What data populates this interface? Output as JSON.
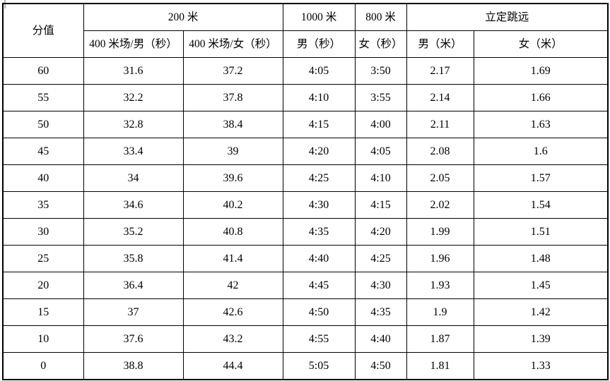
{
  "table": {
    "header": {
      "score": "分值",
      "group_200m": "200 米",
      "col_400m_track_male": "400 米场/男（秒）",
      "col_400m_track_female": "400 米场/女（秒）",
      "group_1000m": "1000 米",
      "col_1000m_male": "男（秒）",
      "group_800m": "800 米",
      "col_800m_female": "女（秒）",
      "group_standing_long_jump": "立定跳远",
      "col_jump_male": "男（米）",
      "col_jump_female": "女（米）"
    },
    "column_keys": [
      "score",
      "m400_male",
      "m400_female",
      "m1000_male",
      "m800_female",
      "jump_male",
      "jump_female"
    ],
    "rows": [
      [
        "60",
        "31.6",
        "37.2",
        "4:05",
        "3:50",
        "2.17",
        "1.69"
      ],
      [
        "55",
        "32.2",
        "37.8",
        "4:10",
        "3:55",
        "2.14",
        "1.66"
      ],
      [
        "50",
        "32.8",
        "38.4",
        "4:15",
        "4:00",
        "2.11",
        "1.63"
      ],
      [
        "45",
        "33.4",
        "39",
        "4:20",
        "4:05",
        "2.08",
        "1.6"
      ],
      [
        "40",
        "34",
        "39.6",
        "4:25",
        "4:10",
        "2.05",
        "1.57"
      ],
      [
        "35",
        "34.6",
        "40.2",
        "4:30",
        "4:15",
        "2.02",
        "1.54"
      ],
      [
        "30",
        "35.2",
        "40.8",
        "4:35",
        "4:20",
        "1.99",
        "1.51"
      ],
      [
        "25",
        "35.8",
        "41.4",
        "4:40",
        "4:25",
        "1.96",
        "1.48"
      ],
      [
        "20",
        "36.4",
        "42",
        "4:45",
        "4:30",
        "1.93",
        "1.45"
      ],
      [
        "15",
        "37",
        "42.6",
        "4:50",
        "4:35",
        "1.9",
        "1.42"
      ],
      [
        "10",
        "37.6",
        "43.2",
        "4:55",
        "4:40",
        "1.87",
        "1.39"
      ],
      [
        "0",
        "38.8",
        "44.4",
        "5:05",
        "4:50",
        "1.81",
        "1.33"
      ]
    ]
  }
}
